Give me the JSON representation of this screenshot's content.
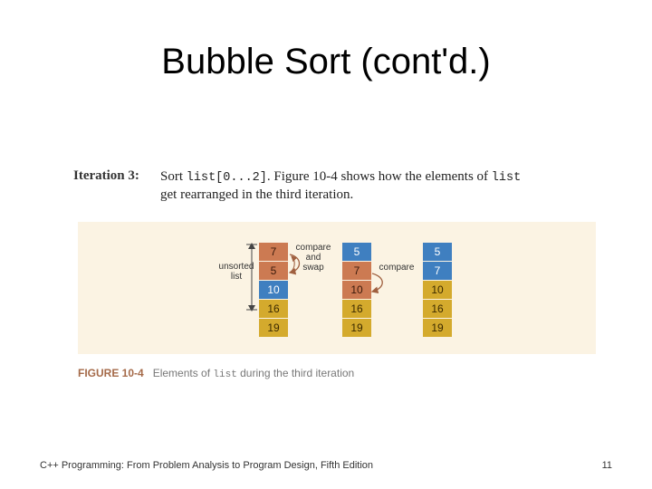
{
  "title": "Bubble Sort (cont'd.)",
  "iteration": {
    "label": "Iteration 3:",
    "text_1": "Sort ",
    "code_1": "list[0...2]",
    "text_2": ". Figure 10-4 shows how the elements of ",
    "code_2": "list",
    "text_3": "get rearranged in the third iteration."
  },
  "figure": {
    "columns": [
      {
        "cells": [
          {
            "value": "7",
            "color": "orange"
          },
          {
            "value": "5",
            "color": "orange"
          },
          {
            "value": "10",
            "color": "blue"
          },
          {
            "value": "16",
            "color": "gold"
          },
          {
            "value": "19",
            "color": "gold"
          }
        ]
      },
      {
        "cells": [
          {
            "value": "5",
            "color": "blue"
          },
          {
            "value": "7",
            "color": "orange"
          },
          {
            "value": "10",
            "color": "orange"
          },
          {
            "value": "16",
            "color": "gold"
          },
          {
            "value": "19",
            "color": "gold"
          }
        ]
      },
      {
        "cells": [
          {
            "value": "5",
            "color": "blue"
          },
          {
            "value": "7",
            "color": "blue"
          },
          {
            "value": "10",
            "color": "gold"
          },
          {
            "value": "16",
            "color": "gold"
          },
          {
            "value": "19",
            "color": "gold"
          }
        ]
      }
    ],
    "unsorted_label_1": "unsorted",
    "unsorted_label_2": "list",
    "compare_swap_1": "compare",
    "compare_swap_2": "and",
    "compare_swap_3": "swap",
    "compare_label": "compare"
  },
  "caption": {
    "figure_number": "FIGURE 10-4",
    "text_1": "Elements of ",
    "code": "list",
    "text_2": " during the third iteration"
  },
  "footer": "C++ Programming: From Problem Analysis to Program Design, Fifth Edition",
  "page_number": "11",
  "colors": {
    "orange": "#cc7a52",
    "blue": "#3f7fc0",
    "gold": "#d4aa2d",
    "panel": "#fbf3e3"
  }
}
